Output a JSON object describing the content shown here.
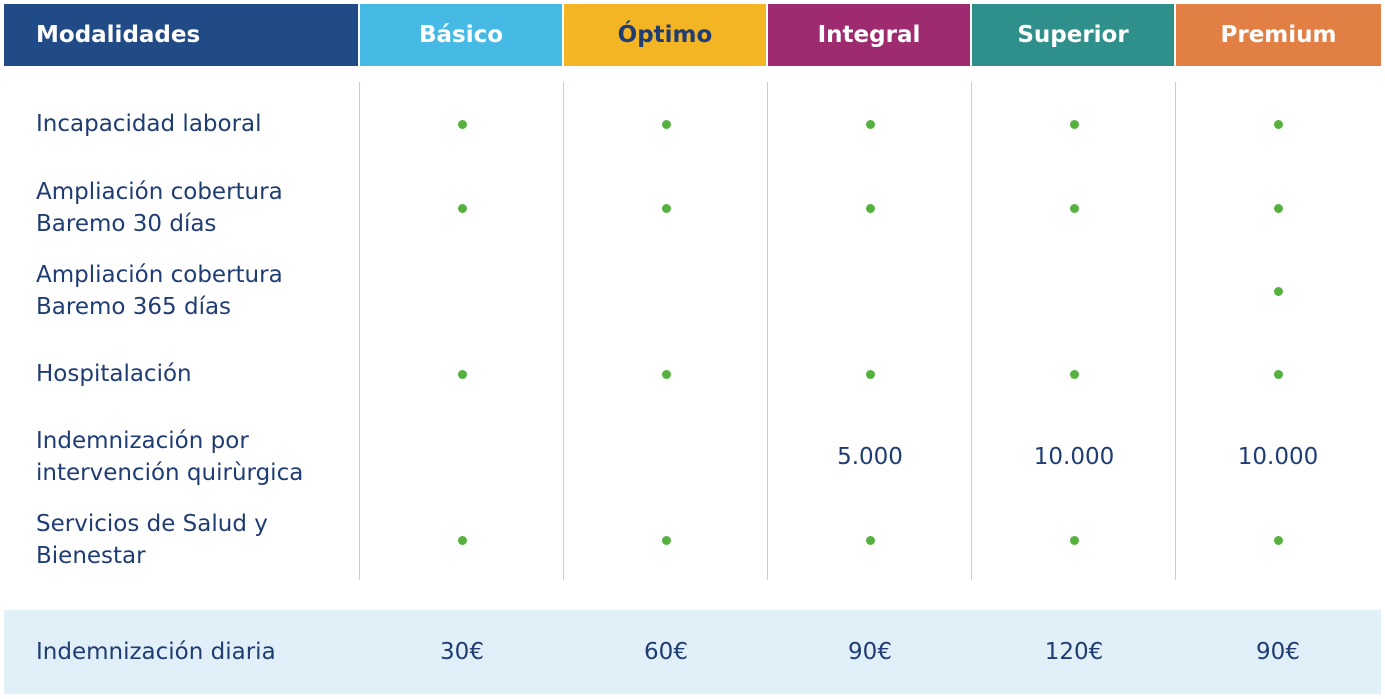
{
  "header": {
    "label": "Modalidades",
    "plans": [
      {
        "name": "Básico",
        "color": "#47b9e5"
      },
      {
        "name": "Óptimo",
        "color": "#f4b524"
      },
      {
        "name": "Integral",
        "color": "#9e2a6f"
      },
      {
        "name": "Superior",
        "color": "#2f8f8b"
      },
      {
        "name": "Premium",
        "color": "#e27f45"
      }
    ],
    "label_color": "#214b86"
  },
  "rows": [
    {
      "label_lines": [
        "Incapacidad laboral"
      ],
      "cells": [
        "dot",
        "dot",
        "dot",
        "dot",
        "dot"
      ]
    },
    {
      "label_lines": [
        "Ampliación cobertura",
        "Baremo 30 días"
      ],
      "cells": [
        "dot",
        "dot",
        "dot",
        "dot",
        "dot"
      ]
    },
    {
      "label_lines": [
        "Ampliación cobertura",
        "Baremo 365 días"
      ],
      "cells": [
        "",
        "",
        "",
        "",
        "dot"
      ]
    },
    {
      "label_lines": [
        "Hospitalación"
      ],
      "cells": [
        "dot",
        "dot",
        "dot",
        "dot",
        "dot"
      ]
    },
    {
      "label_lines": [
        "Indemnización por",
        "intervención quirùrgica"
      ],
      "cells": [
        "",
        "",
        "5.000",
        "10.000",
        "10.000"
      ]
    },
    {
      "label_lines": [
        "Servicios de Salud y",
        "Bienestar"
      ],
      "cells": [
        "dot",
        "dot",
        "dot",
        "dot",
        "dot"
      ]
    }
  ],
  "footer": {
    "label": "Indemnización diaria",
    "values": [
      "30€",
      "60€",
      "90€",
      "120€",
      "90€"
    ]
  },
  "colors": {
    "text": "#1f3c73",
    "dot": "#56b23e",
    "divider": "#a6dcea",
    "footer_bg": "#e1f0f8"
  }
}
